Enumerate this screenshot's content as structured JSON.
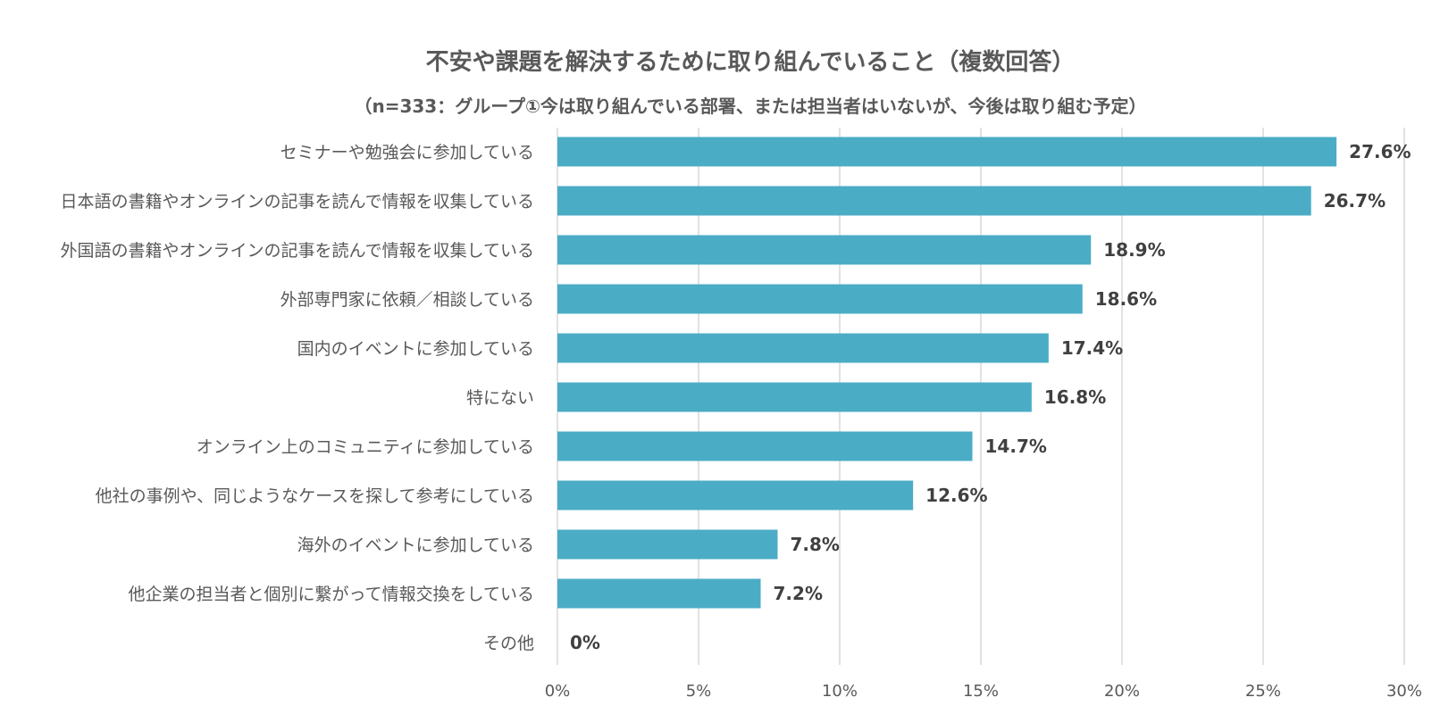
{
  "chart_data": {
    "type": "bar",
    "orientation": "horizontal",
    "title": "不安や課題を解決するために取り組んでいること（複数回答）",
    "subtitle": "（n=333：グループ①今は取り組んでいる部署、または担当者はいないが、今後は取り組む予定）",
    "categories": [
      "セミナーや勉強会に参加している",
      "日本語の書籍やオンラインの記事を読んで情報を収集している",
      "外国語の書籍やオンラインの記事を読んで情報を収集している",
      "外部専門家に依頼／相談している",
      "国内のイベントに参加している",
      "特にない",
      "オンライン上のコミュニティに参加している",
      "他社の事例や、同じようなケースを探して参考にしている",
      "海外のイベントに参加している",
      "他企業の担当者と個別に繋がって情報交換をしている",
      "その他"
    ],
    "values": [
      27.6,
      26.7,
      18.9,
      18.6,
      17.4,
      16.8,
      14.7,
      12.6,
      7.8,
      7.2,
      0
    ],
    "value_labels": [
      "27.6%",
      "26.7%",
      "18.9%",
      "18.6%",
      "17.4%",
      "16.8%",
      "14.7%",
      "12.6%",
      "7.8%",
      "7.2%",
      "0%"
    ],
    "xlim": [
      0,
      30
    ],
    "x_ticks": [
      0,
      5,
      10,
      15,
      20,
      25,
      30
    ],
    "x_tick_labels": [
      "0%",
      "5%",
      "10%",
      "15%",
      "20%",
      "25%",
      "30%"
    ],
    "grid": true,
    "legend": "none",
    "bar_color": "#4bacc6"
  }
}
